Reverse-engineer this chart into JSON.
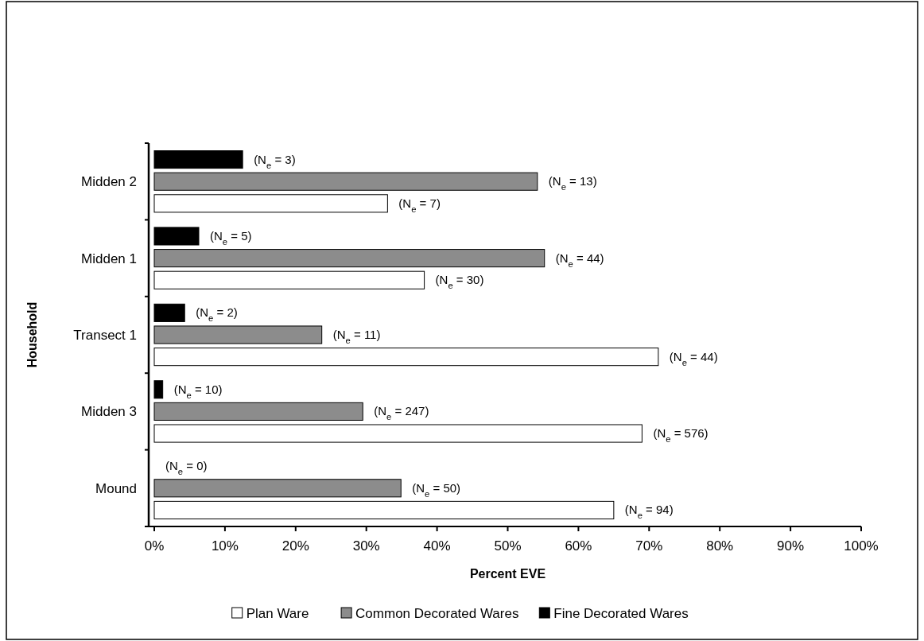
{
  "chart_data": {
    "type": "bar",
    "orientation": "horizontal",
    "xlabel": "Percent EVE",
    "ylabel": "Household",
    "categories": [
      "Midden 2",
      "Midden 1",
      "Transect 1",
      "Midden 3",
      "Mound"
    ],
    "xlim": [
      0,
      100
    ],
    "xticks": [
      {
        "value": 0,
        "label": "0%"
      },
      {
        "value": 10,
        "label": "10%"
      },
      {
        "value": 20,
        "label": "20%"
      },
      {
        "value": 30,
        "label": "30%"
      },
      {
        "value": 40,
        "label": "40%"
      },
      {
        "value": 50,
        "label": "50%"
      },
      {
        "value": 60,
        "label": "60%"
      },
      {
        "value": 70,
        "label": "70%"
      },
      {
        "value": 80,
        "label": "80%"
      },
      {
        "value": 90,
        "label": "90%"
      },
      {
        "value": 100,
        "label": "100%"
      }
    ],
    "legend": "bottom",
    "series": [
      {
        "name": "Plan Ware",
        "color": "#ffffff",
        "values": [
          33,
          38.2,
          71.3,
          69,
          65
        ]
      },
      {
        "name": "Common Decorated Wares",
        "color": "#8c8c8c",
        "values": [
          54.2,
          55.2,
          23.7,
          29.5,
          34.9
        ]
      },
      {
        "name": "Fine Decorated Wares",
        "color": "#000000",
        "values": [
          12.5,
          6.3,
          4.3,
          1.2,
          0
        ]
      }
    ],
    "annotations": [
      "(N$_{e}$ = 7)",
      "(N$_{e}$ = 30)",
      "(N$_{e}$ = 44)",
      "(N$_{e}$ = 576)",
      "(N$_{e}$ = 94)",
      "(N$_{e}$ = 13)",
      "(N$_{e}$ = 44)",
      "(N$_{e}$ = 11)",
      "(N$_{e}$ = 247)",
      "(N$_{e}$ = 50)",
      "(N$_{e}$ = 3)",
      "(N$_{e}$ = 5)",
      "(N$_{e}$ = 2)",
      "(N$_{e}$ = 10)",
      "(N$_{e}$ = 0)"
    ]
  }
}
